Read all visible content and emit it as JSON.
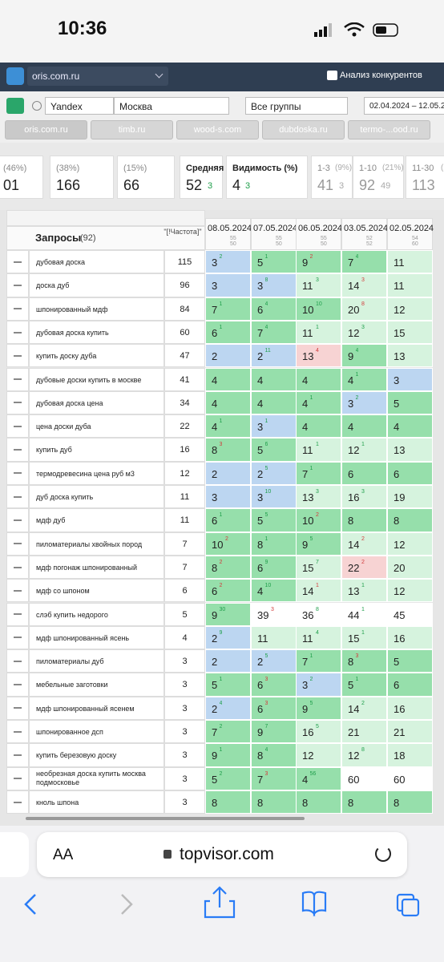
{
  "status_bar": {
    "time": "10:36"
  },
  "nav": {
    "project": "oris.com.ru",
    "competitors": "Анализ конкурентов"
  },
  "toolbar": {
    "engine": "Yandex",
    "region": "Москва",
    "group": "Все группы",
    "dates": "02.04.2024 – 12.05.2"
  },
  "tabs": [
    "oris.com.ru",
    "timb.ru",
    "wood-s.com",
    "dubdoska.ru",
    "termo-...ood.ru"
  ],
  "stats": [
    {
      "label": "(46%)",
      "value": "01"
    },
    {
      "label": "(38%)",
      "value": "166"
    },
    {
      "label": "(15%)",
      "value": "66"
    },
    {
      "label": "Средняя",
      "value": "52",
      "delta": "3"
    },
    {
      "label": "Видимость (%)",
      "value": "4",
      "delta": "3"
    },
    {
      "label": "1-3",
      "pct": "(9%)",
      "value": "41",
      "delta": "3"
    },
    {
      "label": "1-10",
      "pct": "(21%)",
      "value": "92",
      "delta": "49"
    },
    {
      "label": "11-30",
      "pct": "(2",
      "value": "113"
    }
  ],
  "table": {
    "query_header": "Запросы",
    "query_count": "(92)",
    "freq_header": "\"[!Частота]\"",
    "dates": [
      {
        "date": "08.05.2024",
        "a": "55",
        "b": "50"
      },
      {
        "date": "07.05.2024",
        "a": "55",
        "b": "50"
      },
      {
        "date": "06.05.2024",
        "a": "55",
        "b": "50"
      },
      {
        "date": "03.05.2024",
        "a": "52",
        "b": "52"
      },
      {
        "date": "02.05.2024",
        "a": "54",
        "b": "60"
      }
    ],
    "rows": [
      {
        "query": "дубовая доска",
        "freq": 115,
        "cells": [
          {
            "p": 3,
            "d": 2,
            "t": "up"
          },
          {
            "p": 5,
            "d": 1,
            "t": "up"
          },
          {
            "p": 9,
            "d": 2,
            "t": "down"
          },
          {
            "p": 7,
            "d": 4,
            "t": "up"
          },
          {
            "p": 11
          }
        ]
      },
      {
        "query": "доска дуб",
        "freq": 96,
        "cells": [
          {
            "p": 3
          },
          {
            "p": 3,
            "d": 8,
            "t": "up"
          },
          {
            "p": 11,
            "d": 3,
            "t": "up"
          },
          {
            "p": 14,
            "d": 3,
            "t": "down"
          },
          {
            "p": 11
          }
        ]
      },
      {
        "query": "шпонированный мдф",
        "freq": 84,
        "cells": [
          {
            "p": 7,
            "d": 1,
            "t": "up"
          },
          {
            "p": 6,
            "d": 4,
            "t": "up"
          },
          {
            "p": 10,
            "d": 10,
            "t": "up"
          },
          {
            "p": 20,
            "d": 8,
            "t": "down"
          },
          {
            "p": 12
          }
        ]
      },
      {
        "query": "дубовая доска купить",
        "freq": 60,
        "cells": [
          {
            "p": 6,
            "d": 1,
            "t": "up"
          },
          {
            "p": 7,
            "d": 4,
            "t": "up"
          },
          {
            "p": 11,
            "d": 1,
            "t": "up"
          },
          {
            "p": 12,
            "d": 3,
            "t": "up"
          },
          {
            "p": 15
          }
        ]
      },
      {
        "query": "купить доску дуба",
        "freq": 47,
        "cells": [
          {
            "p": 2
          },
          {
            "p": 2,
            "d": 11,
            "t": "up"
          },
          {
            "p": 13,
            "d": 4,
            "t": "down",
            "flag": "drop"
          },
          {
            "p": 9,
            "d": 4,
            "t": "up"
          },
          {
            "p": 13
          }
        ]
      },
      {
        "query": "дубовые доски купить в москве",
        "freq": 41,
        "cells": [
          {
            "p": 4
          },
          {
            "p": 4
          },
          {
            "p": 4
          },
          {
            "p": 4,
            "d": 1,
            "t": "up"
          },
          {
            "p": 3
          }
        ]
      },
      {
        "query": "дубовая доска цена",
        "freq": 34,
        "cells": [
          {
            "p": 4
          },
          {
            "p": 4
          },
          {
            "p": 4,
            "d": 1,
            "t": "up"
          },
          {
            "p": 3,
            "d": 2,
            "t": "up"
          },
          {
            "p": 5
          }
        ]
      },
      {
        "query": "цена доски дуба",
        "freq": 22,
        "cells": [
          {
            "p": 4,
            "d": 1,
            "t": "up"
          },
          {
            "p": 3,
            "d": 1,
            "t": "up"
          },
          {
            "p": 4
          },
          {
            "p": 4
          },
          {
            "p": 4
          }
        ]
      },
      {
        "query": "купить дуб",
        "freq": 16,
        "cells": [
          {
            "p": 8,
            "d": 3,
            "t": "down"
          },
          {
            "p": 5,
            "d": 6,
            "t": "up"
          },
          {
            "p": 11,
            "d": 1,
            "t": "up"
          },
          {
            "p": 12,
            "d": 1,
            "t": "up"
          },
          {
            "p": 13
          }
        ]
      },
      {
        "query": "термодревесина цена руб м3",
        "freq": 12,
        "cells": [
          {
            "p": 2
          },
          {
            "p": 2,
            "d": 5,
            "t": "up"
          },
          {
            "p": 7,
            "d": 1,
            "t": "up"
          },
          {
            "p": 6
          },
          {
            "p": 6
          }
        ]
      },
      {
        "query": "дуб доска купить",
        "freq": 11,
        "cells": [
          {
            "p": 3
          },
          {
            "p": 3,
            "d": 10,
            "t": "up"
          },
          {
            "p": 13,
            "d": 3,
            "t": "up"
          },
          {
            "p": 16,
            "d": 3,
            "t": "up"
          },
          {
            "p": 19
          }
        ]
      },
      {
        "query": "мдф дуб",
        "freq": 11,
        "cells": [
          {
            "p": 6,
            "d": 1,
            "t": "up"
          },
          {
            "p": 5,
            "d": 5,
            "t": "up"
          },
          {
            "p": 10,
            "d": 2,
            "t": "down"
          },
          {
            "p": 8
          },
          {
            "p": 8
          }
        ]
      },
      {
        "query": "пиломатериалы хвойных пород",
        "freq": 7,
        "cells": [
          {
            "p": 10,
            "d": 2,
            "t": "down"
          },
          {
            "p": 8,
            "d": 1,
            "t": "up"
          },
          {
            "p": 9,
            "d": 5,
            "t": "up"
          },
          {
            "p": 14,
            "d": 2,
            "t": "down"
          },
          {
            "p": 12
          }
        ]
      },
      {
        "query": "мдф погонаж шпонированный",
        "freq": 7,
        "cells": [
          {
            "p": 8,
            "d": 2,
            "t": "down"
          },
          {
            "p": 6,
            "d": 9,
            "t": "up"
          },
          {
            "p": 15,
            "d": 7,
            "t": "up"
          },
          {
            "p": 22,
            "d": 2,
            "t": "down",
            "flag": "drop"
          },
          {
            "p": 20
          }
        ]
      },
      {
        "query": "мдф со шпоном",
        "freq": 6,
        "cells": [
          {
            "p": 6,
            "d": 2,
            "t": "down"
          },
          {
            "p": 4,
            "d": 10,
            "t": "up"
          },
          {
            "p": 14,
            "d": 1,
            "t": "down"
          },
          {
            "p": 13,
            "d": 1,
            "t": "up"
          },
          {
            "p": 12
          }
        ]
      },
      {
        "query": "слэб купить недорого",
        "freq": 5,
        "cells": [
          {
            "p": 9,
            "d": 30,
            "t": "up"
          },
          {
            "p": 39,
            "d": 3,
            "t": "down"
          },
          {
            "p": 36,
            "d": 8,
            "t": "up"
          },
          {
            "p": 44,
            "d": 1,
            "t": "up"
          },
          {
            "p": 45
          }
        ]
      },
      {
        "query": "мдф шпонированный ясень",
        "freq": 4,
        "cells": [
          {
            "p": 2,
            "d": 9,
            "t": "up"
          },
          {
            "p": 11
          },
          {
            "p": 11,
            "d": 4,
            "t": "up"
          },
          {
            "p": 15,
            "d": 1,
            "t": "up"
          },
          {
            "p": 16
          }
        ]
      },
      {
        "query": "пиломатериалы дуб",
        "freq": 3,
        "cells": [
          {
            "p": 2
          },
          {
            "p": 2,
            "d": 5,
            "t": "up"
          },
          {
            "p": 7,
            "d": 1,
            "t": "up"
          },
          {
            "p": 8,
            "d": 3,
            "t": "down"
          },
          {
            "p": 5
          }
        ]
      },
      {
        "query": "мебельные заготовки",
        "freq": 3,
        "cells": [
          {
            "p": 5,
            "d": 1,
            "t": "up"
          },
          {
            "p": 6,
            "d": 3,
            "t": "down"
          },
          {
            "p": 3,
            "d": 2,
            "t": "up"
          },
          {
            "p": 5,
            "d": 1,
            "t": "up"
          },
          {
            "p": 6
          }
        ]
      },
      {
        "query": "мдф шпонированный ясенем",
        "freq": 3,
        "cells": [
          {
            "p": 2,
            "d": 4,
            "t": "up"
          },
          {
            "p": 6,
            "d": 3,
            "t": "down"
          },
          {
            "p": 9,
            "d": 5,
            "t": "up"
          },
          {
            "p": 14,
            "d": 2,
            "t": "up"
          },
          {
            "p": 16
          }
        ]
      },
      {
        "query": "шпонированное дсп",
        "freq": 3,
        "cells": [
          {
            "p": 7,
            "d": 2,
            "t": "up"
          },
          {
            "p": 9,
            "d": 7,
            "t": "up"
          },
          {
            "p": 16,
            "d": 5,
            "t": "up"
          },
          {
            "p": 21
          },
          {
            "p": 21
          }
        ]
      },
      {
        "query": "купить березовую доску",
        "freq": 3,
        "cells": [
          {
            "p": 9,
            "d": 1,
            "t": "up"
          },
          {
            "p": 8,
            "d": 4,
            "t": "up"
          },
          {
            "p": 12
          },
          {
            "p": 12,
            "d": 8,
            "t": "up"
          },
          {
            "p": 18
          }
        ]
      },
      {
        "query": "необрезная доска купить москва подмосковье",
        "freq": 3,
        "cells": [
          {
            "p": 5,
            "d": 2,
            "t": "up"
          },
          {
            "p": 7,
            "d": 3,
            "t": "down"
          },
          {
            "p": 4,
            "d": 56,
            "t": "up"
          },
          {
            "p": 60
          },
          {
            "p": 60
          }
        ]
      },
      {
        "query": "кноль шпона",
        "freq": 3,
        "cells": [
          {
            "p": 8
          },
          {
            "p": 8
          },
          {
            "p": 8
          },
          {
            "p": 8
          },
          {
            "p": 8
          }
        ]
      }
    ]
  },
  "browser": {
    "text_size": "AA",
    "url": "topvisor.com"
  }
}
